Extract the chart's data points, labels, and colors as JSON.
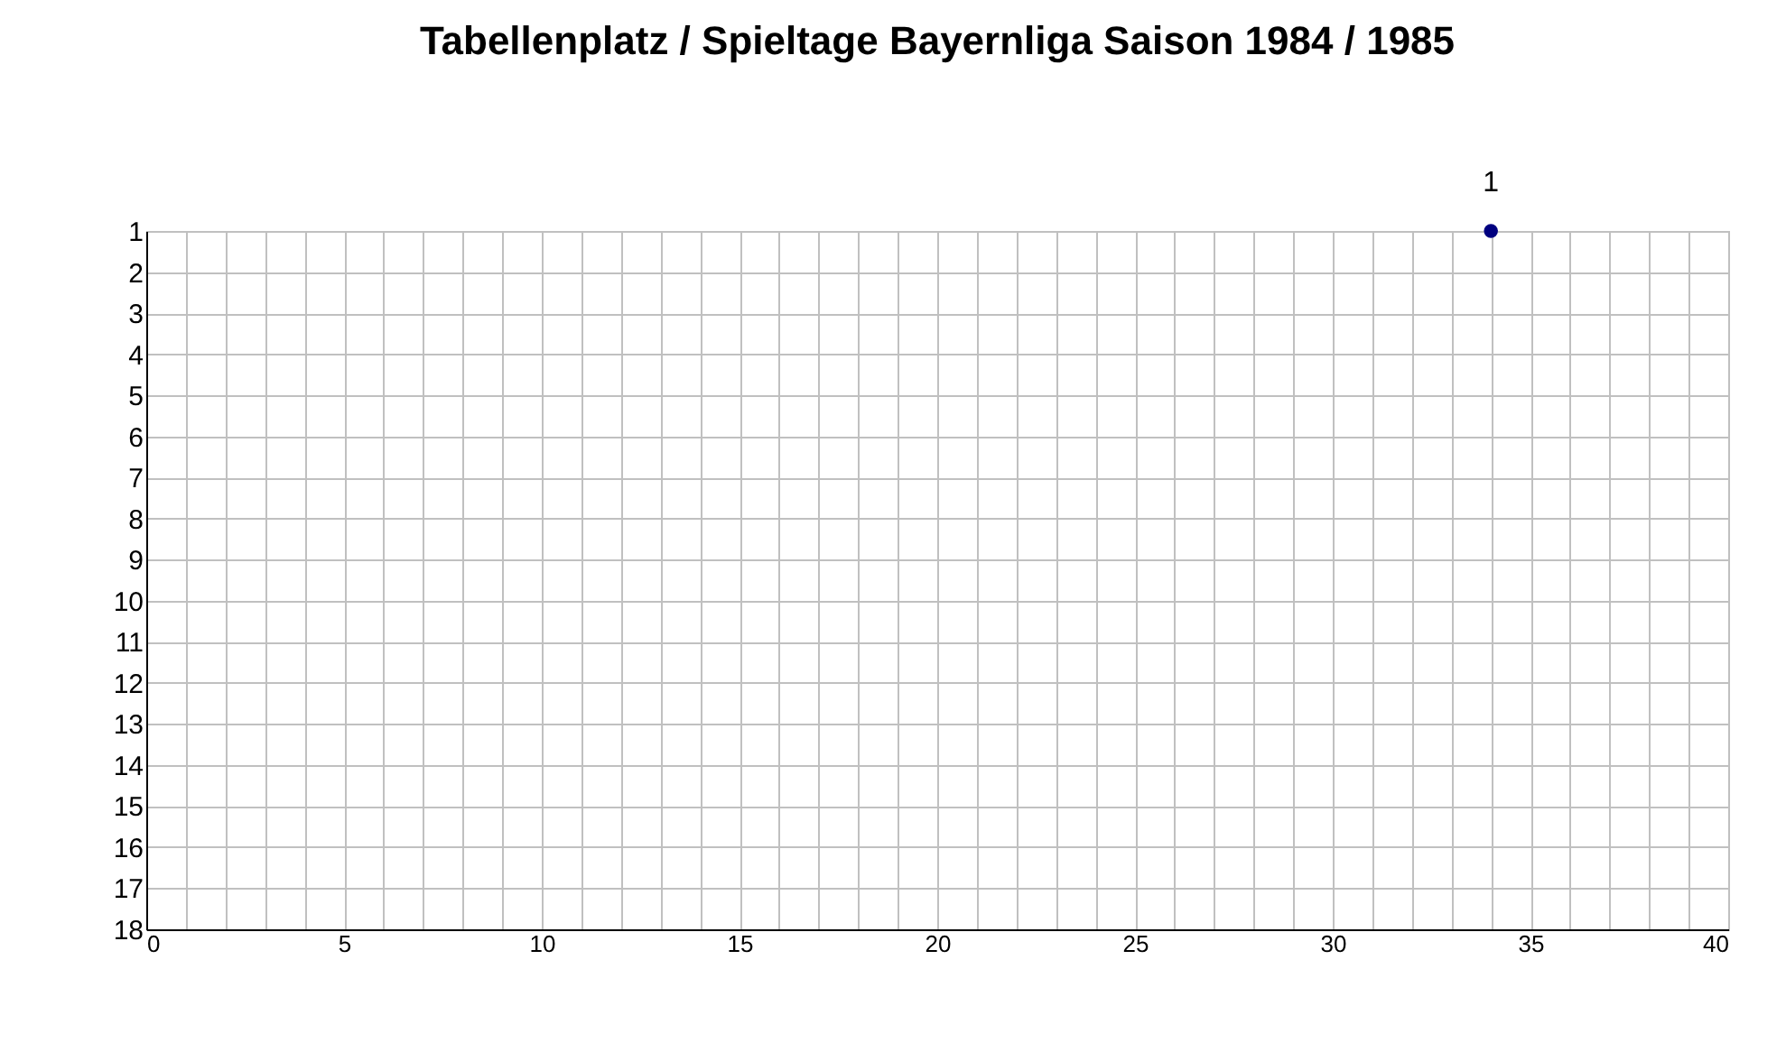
{
  "chart_data": {
    "type": "scatter",
    "title": "Tabellenplatz / Spieltage Bayernliga Saison 1984 / 1985",
    "x": [
      34
    ],
    "series": [
      {
        "color": "#000080",
        "values": [
          1
        ]
      }
    ],
    "data_labels": true,
    "marker": "circle",
    "grid": true,
    "xlim": [
      0,
      40
    ],
    "xticks": [
      0,
      {
        "value": 1,
        "label": null
      },
      {
        "value": 2,
        "label": null
      },
      {
        "value": 3,
        "label": null
      },
      {
        "value": 4,
        "label": null
      },
      5,
      {
        "value": 6,
        "label": null
      },
      {
        "value": 7,
        "label": null
      },
      {
        "value": 8,
        "label": null
      },
      {
        "value": 9,
        "label": null
      },
      10,
      {
        "value": 11,
        "label": null
      },
      {
        "value": 12,
        "label": null
      },
      {
        "value": 13,
        "label": null
      },
      {
        "value": 14,
        "label": null
      },
      15,
      {
        "value": 16,
        "label": null
      },
      {
        "value": 17,
        "label": null
      },
      {
        "value": 18,
        "label": null
      },
      {
        "value": 19,
        "label": null
      },
      20,
      {
        "value": 21,
        "label": null
      },
      {
        "value": 22,
        "label": null
      },
      {
        "value": 23,
        "label": null
      },
      {
        "value": 24,
        "label": null
      },
      25,
      {
        "value": 26,
        "label": null
      },
      {
        "value": 27,
        "label": null
      },
      {
        "value": 28,
        "label": null
      },
      {
        "value": 29,
        "label": null
      },
      30,
      {
        "value": 31,
        "label": null
      },
      {
        "value": 32,
        "label": null
      },
      {
        "value": 33,
        "label": null
      },
      {
        "value": 34,
        "label": null
      },
      35,
      {
        "value": 36,
        "label": null
      },
      {
        "value": 37,
        "label": null
      },
      {
        "value": 38,
        "label": null
      },
      {
        "value": 39,
        "label": null
      },
      40
    ],
    "ylim": [
      18,
      1
    ],
    "yticks": [
      1,
      2,
      3,
      4,
      5,
      6,
      7,
      8,
      9,
      10,
      11,
      12,
      13,
      14,
      15,
      16,
      17,
      18
    ]
  }
}
